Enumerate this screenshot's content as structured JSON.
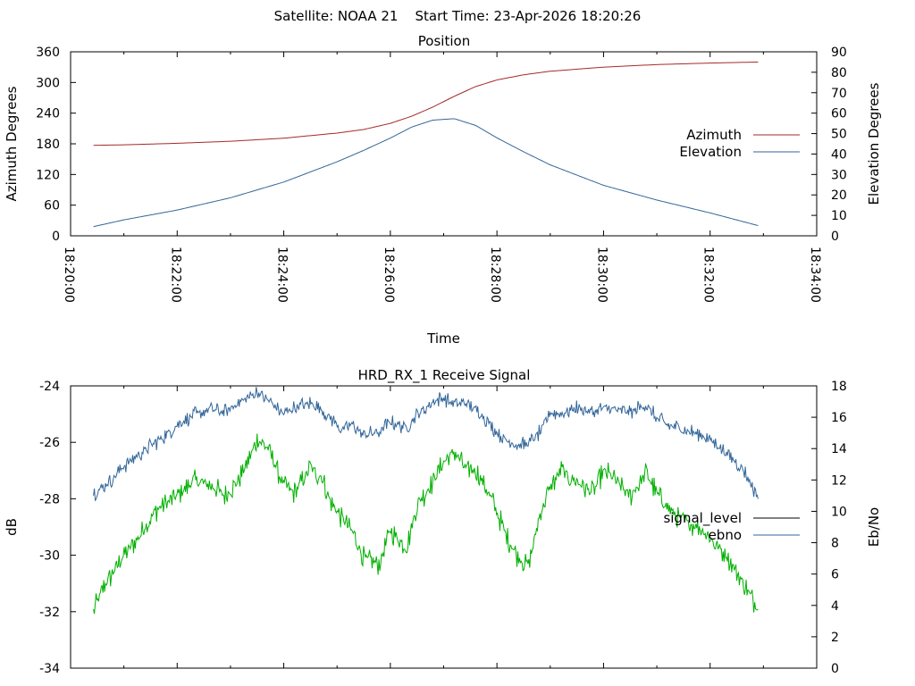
{
  "header": {
    "main_title": "Satellite: NOAA 21    Start Time: 23-Apr-2026 18:20:26"
  },
  "colors": {
    "azimuth": "#a52a2a",
    "elevation": "#336699",
    "signal_level": "#00b000",
    "ebno": "#336699",
    "legend_signal_level": "#000000",
    "axis": "#000000",
    "background": "#ffffff"
  },
  "chart_data": [
    {
      "type": "line",
      "title": "Position",
      "xlabel": "Time",
      "ylabel": "Azimuth Degrees",
      "y2label": "Elevation Degrees",
      "xlim_minutes": [
        0,
        14
      ],
      "x_ticks": [
        0,
        2,
        4,
        6,
        8,
        10,
        12,
        14
      ],
      "x_tick_labels": [
        "18:20:00",
        "18:22:00",
        "18:24:00",
        "18:26:00",
        "18:28:00",
        "18:30:00",
        "18:32:00",
        "18:34:00"
      ],
      "ylim": [
        0,
        360
      ],
      "y_ticks": [
        0,
        60,
        120,
        180,
        240,
        300,
        360
      ],
      "y_tick_labels": [
        "0",
        "60",
        "120",
        "180",
        "240",
        "300",
        "360"
      ],
      "y2lim": [
        0,
        90
      ],
      "y2_ticks": [
        0,
        10,
        20,
        30,
        40,
        50,
        60,
        70,
        80,
        90
      ],
      "y2_tick_labels": [
        "0",
        "10",
        "20",
        "30",
        "40",
        "50",
        "60",
        "70",
        "80",
        "90"
      ],
      "legend_position": "right",
      "series": [
        {
          "name": "Azimuth",
          "axis": "y",
          "x": [
            0.43,
            1.0,
            2.0,
            3.0,
            4.0,
            5.0,
            5.5,
            6.0,
            6.4,
            6.8,
            7.2,
            7.6,
            8.0,
            8.5,
            9.0,
            10.0,
            11.0,
            12.0,
            12.9
          ],
          "values": [
            177,
            178,
            181,
            185,
            191,
            201,
            208,
            220,
            234,
            252,
            273,
            292,
            305,
            315,
            322,
            330,
            335,
            338,
            340
          ]
        },
        {
          "name": "Elevation",
          "axis": "y2",
          "x": [
            0.43,
            1.0,
            2.0,
            3.0,
            4.0,
            5.0,
            5.5,
            6.0,
            6.4,
            6.8,
            7.2,
            7.6,
            8.0,
            8.5,
            9.0,
            10.0,
            11.0,
            12.0,
            12.9
          ],
          "values": [
            4.5,
            7.8,
            12.6,
            18.6,
            26.3,
            36.2,
            41.8,
            47.8,
            53.2,
            56.6,
            57.3,
            54.0,
            47.9,
            41.1,
            34.7,
            24.7,
            17.5,
            11.2,
            5.0
          ]
        }
      ]
    },
    {
      "type": "line",
      "title": "HRD_RX_1 Receive Signal",
      "xlabel": "",
      "ylabel": "dB",
      "y2label": "Eb/No",
      "xlim_minutes": [
        0,
        14
      ],
      "x_ticks": [
        0,
        2,
        4,
        6,
        8,
        10,
        12,
        14
      ],
      "ylim": [
        -34,
        -24
      ],
      "y_ticks": [
        -34,
        -32,
        -30,
        -28,
        -26,
        -24
      ],
      "y_tick_labels": [
        "-34",
        "-32",
        "-30",
        "-28",
        "-26",
        "-24"
      ],
      "y2lim": [
        0,
        18
      ],
      "y2_ticks": [
        0,
        2,
        4,
        6,
        8,
        10,
        12,
        14,
        16,
        18
      ],
      "y2_tick_labels": [
        "0",
        "2",
        "4",
        "6",
        "8",
        "10",
        "12",
        "14",
        "16",
        "18"
      ],
      "legend_position": "right",
      "series": [
        {
          "name": "signal_level",
          "axis": "y",
          "x": [
            0.43,
            0.6,
            0.8,
            1.0,
            1.3,
            1.6,
            2.0,
            2.3,
            2.6,
            2.9,
            3.1,
            3.3,
            3.5,
            3.7,
            4.0,
            4.2,
            4.5,
            4.7,
            4.9,
            5.1,
            5.3,
            5.5,
            5.8,
            6.0,
            6.3,
            6.5,
            6.8,
            7.0,
            7.2,
            7.4,
            7.6,
            7.8,
            8.0,
            8.2,
            8.4,
            8.6,
            8.8,
            9.0,
            9.2,
            9.5,
            9.8,
            10.0,
            10.2,
            10.5,
            10.8,
            11.0,
            11.2,
            11.5,
            11.8,
            12.0,
            12.3,
            12.6,
            12.9
          ],
          "values": [
            -32.0,
            -31.2,
            -30.6,
            -30.0,
            -29.3,
            -28.4,
            -27.9,
            -27.4,
            -27.5,
            -27.9,
            -27.5,
            -26.8,
            -25.9,
            -26.2,
            -27.5,
            -27.8,
            -26.9,
            -27.2,
            -28.2,
            -28.7,
            -29.2,
            -30.1,
            -30.3,
            -29.1,
            -29.8,
            -28.2,
            -27.4,
            -26.7,
            -26.3,
            -26.9,
            -27.0,
            -27.6,
            -28.5,
            -29.4,
            -30.1,
            -30.3,
            -28.6,
            -27.6,
            -27.0,
            -27.4,
            -27.8,
            -27.0,
            -27.3,
            -27.9,
            -27.1,
            -27.8,
            -28.3,
            -28.8,
            -29.0,
            -29.4,
            -30.0,
            -30.9,
            -31.9
          ]
        },
        {
          "name": "ebno",
          "axis": "y2",
          "x": [
            0.43,
            0.6,
            0.8,
            1.0,
            1.3,
            1.6,
            2.0,
            2.3,
            2.6,
            2.9,
            3.1,
            3.3,
            3.5,
            3.7,
            4.0,
            4.2,
            4.5,
            4.7,
            4.9,
            5.1,
            5.3,
            5.5,
            5.8,
            6.0,
            6.3,
            6.5,
            6.8,
            7.0,
            7.2,
            7.4,
            7.6,
            7.8,
            8.0,
            8.2,
            8.4,
            8.6,
            8.8,
            9.0,
            9.2,
            9.5,
            9.8,
            10.0,
            10.2,
            10.5,
            10.8,
            11.0,
            11.2,
            11.5,
            11.8,
            12.0,
            12.3,
            12.6,
            12.9
          ],
          "values": [
            11.2,
            11.5,
            12.1,
            12.9,
            13.7,
            14.4,
            15.5,
            16.1,
            16.5,
            16.3,
            16.8,
            17.2,
            17.6,
            17.1,
            16.2,
            16.6,
            16.9,
            16.5,
            15.9,
            15.2,
            15.6,
            14.8,
            15.1,
            15.7,
            15.4,
            16.1,
            17.0,
            17.2,
            16.8,
            16.9,
            16.5,
            15.9,
            15.0,
            14.5,
            14.2,
            14.3,
            15.0,
            16.3,
            16.2,
            16.6,
            16.3,
            16.6,
            16.5,
            16.3,
            16.8,
            15.9,
            15.5,
            15.2,
            14.9,
            14.6,
            13.7,
            12.8,
            10.9
          ]
        }
      ]
    }
  ]
}
